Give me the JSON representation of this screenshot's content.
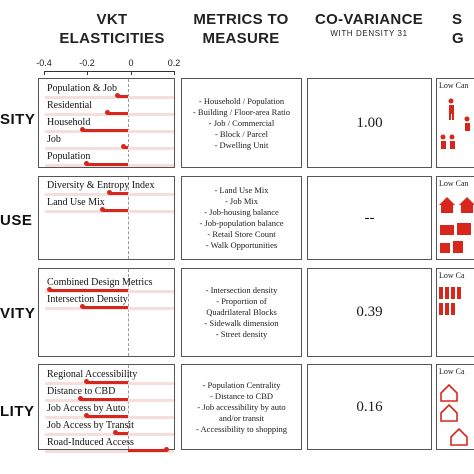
{
  "headers": {
    "vkt": "VKT\nELASTICITIES",
    "metrics": "METRICS TO\nMEASURE",
    "covariance": "CO-VARIANCE",
    "covariance_sub": "WITH DENSITY 31",
    "partial": "S\nG"
  },
  "axis_ticks": [
    "-0.4",
    "-0.2",
    "0",
    "0.2"
  ],
  "chart_data": {
    "type": "bar",
    "xlim": [
      -0.4,
      0.2
    ],
    "panels": [
      {
        "name": "density",
        "categories": [
          "Population & Job",
          "Residential",
          "Household",
          "Job",
          "Population"
        ],
        "values": [
          -0.05,
          -0.1,
          -0.22,
          -0.02,
          -0.2
        ]
      },
      {
        "name": "land_use",
        "categories": [
          "Diversity & Entropy Index",
          "Land Use Mix"
        ],
        "values": [
          -0.09,
          -0.12
        ]
      },
      {
        "name": "connectivity",
        "categories": [
          "Combined Design Metrics",
          "Intersection Density"
        ],
        "values": [
          -0.38,
          -0.22
        ]
      },
      {
        "name": "accessibility",
        "categories": [
          "Regional Accessibility",
          "Distance to CBD",
          "Job Access by Auto",
          "Job Access by Transit",
          "Road-Induced Access"
        ],
        "values": [
          -0.2,
          -0.23,
          -0.2,
          -0.06,
          0.19
        ]
      }
    ]
  },
  "rows": [
    {
      "label": "SITY",
      "metrics": [
        "- Household / Population",
        "- Building / Floor-area Ratio",
        "- Job / Commercial",
        "- Block / Parcel",
        "- Dwelling Unit"
      ],
      "covariance": "1.00",
      "scale_label": "Low Can"
    },
    {
      "label": "USE",
      "metrics": [
        "- Land Use Mix",
        "- Job Mix",
        "- Job-housing balance",
        "- Job-population balance",
        "- Retail Store Count",
        "- Walk Opportunities"
      ],
      "covariance": "--",
      "scale_label": "Low Can"
    },
    {
      "label": "VITY",
      "metrics": [
        "- Intersection density",
        "- Proportion of",
        "Quadrilateral Blocks",
        "- Sidewalk dimension",
        "- Street density"
      ],
      "covariance": "0.39",
      "scale_label": "Low Ca"
    },
    {
      "label": "LITY",
      "metrics": [
        "- Population Centrality",
        "- Distance to CBD",
        "- Job accessibility by auto",
        "and/or transit",
        "- Accessibility to shopping"
      ],
      "covariance": "0.16",
      "scale_label": "Low Ca"
    }
  ]
}
